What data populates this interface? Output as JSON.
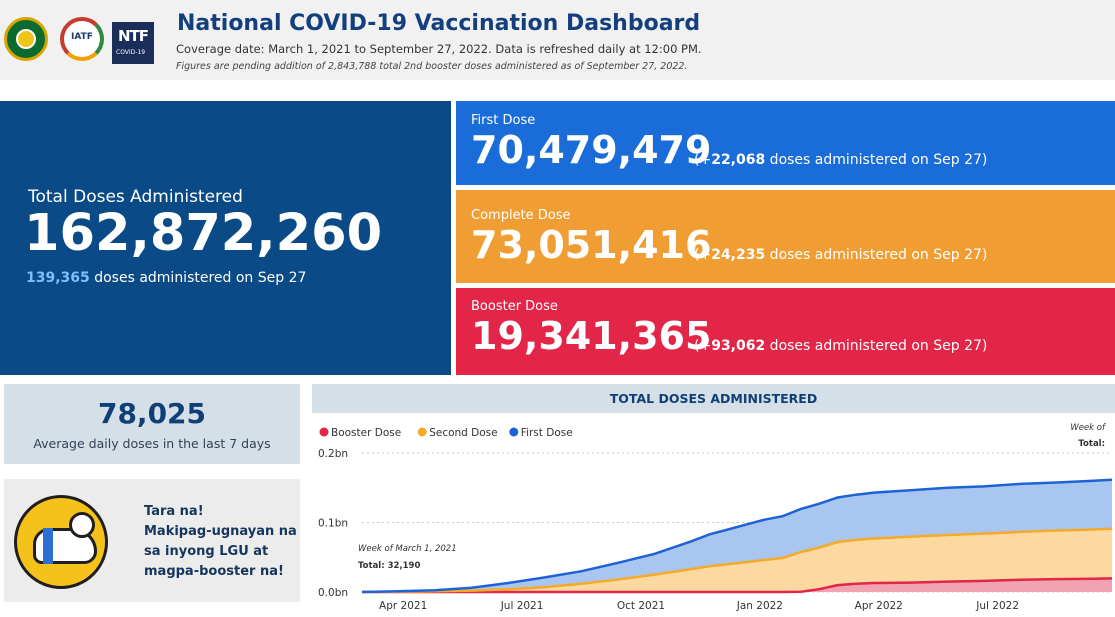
{
  "header": {
    "title": "National COVID-19 Vaccination Dashboard",
    "subtitle": "Coverage date: March 1, 2021 to September 27, 2022. Data is refreshed daily at 12:00 PM.",
    "note": "Figures are pending addition of 2,843,788 total 2nd booster doses administered as of September 27, 2022.",
    "logos": {
      "doh": "doh-seal-logo",
      "iatf": "IATF",
      "ntf_big": "NTF",
      "ntf_small": "COVID-19"
    }
  },
  "total": {
    "label": "Total Doses Administered",
    "value": "162,872,260",
    "daily_value": "139,365",
    "daily_text": " doses administered on Sep 27"
  },
  "doses": {
    "first": {
      "label": "First Dose",
      "value": "70,479,479",
      "delta_open": "(+",
      "delta": "22,068",
      "delta_text": " doses administered on Sep 27)"
    },
    "complete": {
      "label": "Complete Dose",
      "value": "73,051,416",
      "delta_open": "(+",
      "delta": "24,235",
      "delta_text": " doses administered on Sep 27)"
    },
    "booster": {
      "label": "Booster Dose",
      "value": "19,341,365",
      "delta_open": "(+",
      "delta": "93,062",
      "delta_text": " doses administered on Sep 27)"
    }
  },
  "average": {
    "value": "78,025",
    "label": "Average daily doses in the last 7 days"
  },
  "promo": {
    "lines": [
      "Tara na!",
      "Makipag-ugnayan na",
      "sa inyong LGU at",
      "magpa-booster na!"
    ]
  },
  "chart_title": "TOTAL DOSES ADMINISTERED",
  "colors": {
    "navy": "#0a4a86",
    "first": "#1a6cd9",
    "complete": "#f09e34",
    "booster": "#e32648",
    "panel": "#d5dfe8"
  },
  "chart_data": {
    "type": "area",
    "legend_position": "top-left",
    "legend": [
      {
        "name": "Booster Dose",
        "color": "#e32648"
      },
      {
        "name": "Second Dose",
        "color": "#f7a928"
      },
      {
        "name": "First Dose",
        "color": "#1e63d6"
      }
    ],
    "y_ticks": [
      "0.0bn",
      "0.1bn",
      "0.2bn"
    ],
    "y_tick_values": [
      0,
      0.1,
      0.2
    ],
    "ylim": [
      0,
      0.2
    ],
    "x_tick_labels": [
      "Apr 2021",
      "Jul 2021",
      "Oct 2021",
      "Jan 2022",
      "Apr 2022",
      "Jul 2022"
    ],
    "x_tick_weeks": [
      4.5,
      17.5,
      30.5,
      43.5,
      56.5,
      69.5
    ],
    "x_range_weeks": [
      0,
      82
    ],
    "stacked": true,
    "weeks": [
      0,
      4,
      8,
      12,
      16,
      20,
      24,
      28,
      32,
      36,
      38,
      40,
      42,
      44,
      46,
      48,
      50,
      52,
      54,
      56,
      60,
      64,
      68,
      72,
      76,
      80,
      82
    ],
    "series": [
      {
        "name": "Booster Dose",
        "values": [
          0,
          0,
          0,
          0,
          0,
          0,
          0,
          0,
          0,
          0,
          0,
          0,
          0,
          0,
          0,
          0.0005,
          0.004,
          0.01,
          0.012,
          0.013,
          0.0135,
          0.015,
          0.016,
          0.0175,
          0.0185,
          0.019,
          0.0195
        ]
      },
      {
        "name": "Second Dose",
        "values": [
          0,
          0.0005,
          0.001,
          0.002,
          0.004,
          0.007,
          0.012,
          0.018,
          0.025,
          0.033,
          0.037,
          0.04,
          0.043,
          0.046,
          0.049,
          0.057,
          0.06,
          0.062,
          0.063,
          0.064,
          0.066,
          0.067,
          0.068,
          0.069,
          0.07,
          0.071,
          0.0715
        ]
      },
      {
        "name": "First Dose",
        "values": [
          0,
          0.0005,
          0.0015,
          0.004,
          0.009,
          0.014,
          0.018,
          0.024,
          0.03,
          0.04,
          0.046,
          0.05,
          0.054,
          0.058,
          0.06,
          0.062,
          0.063,
          0.064,
          0.065,
          0.066,
          0.067,
          0.068,
          0.068,
          0.069,
          0.069,
          0.07,
          0.0705
        ]
      }
    ],
    "annotations": {
      "left_title": "Week of March 1, 2021",
      "left_total": "Total: 32,190",
      "right_title": "Week of",
      "right_total": "Total:"
    }
  }
}
